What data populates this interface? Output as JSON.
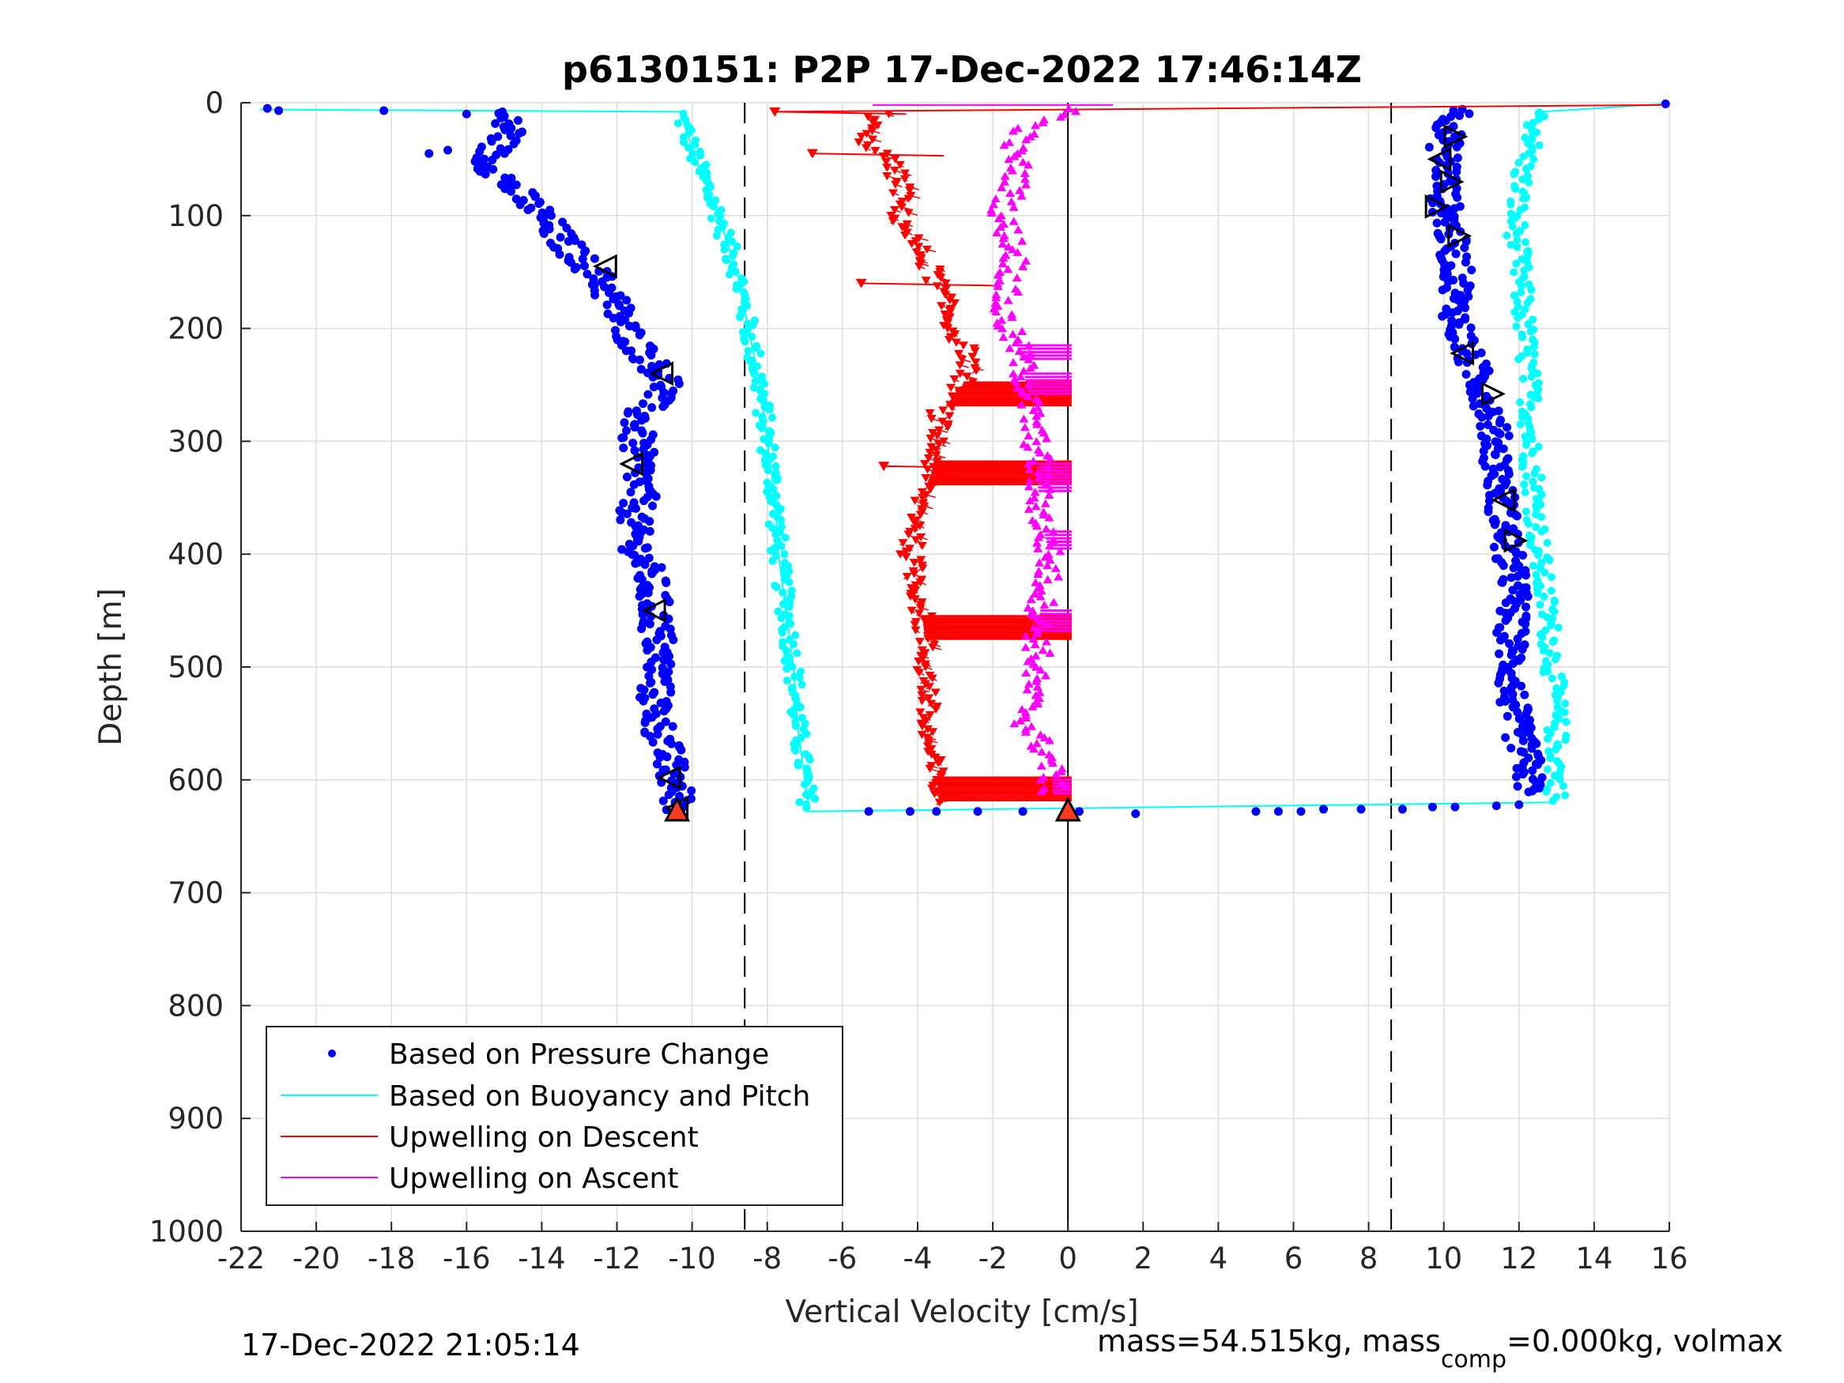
{
  "chart_data": {
    "type": "scatter",
    "title": "p6130151: P2P 17-Dec-2022 17:46:14Z",
    "xlabel": "Vertical Velocity [cm/s]",
    "ylabel": "Depth [m]",
    "xlim": [
      -22,
      16
    ],
    "ylim": [
      0,
      1000
    ],
    "y_reversed": true,
    "grid": true,
    "x_ticks": [
      "-22",
      "-20",
      "-18",
      "-16",
      "-14",
      "-12",
      "-10",
      "-8",
      "-6",
      "-4",
      "-2",
      "0",
      "2",
      "4",
      "6",
      "8",
      "10",
      "12",
      "14",
      "16"
    ],
    "y_ticks": [
      "0",
      "100",
      "200",
      "300",
      "400",
      "500",
      "600",
      "700",
      "800",
      "900",
      "1000"
    ],
    "reference_lines": {
      "dashed_x": [
        -8.6,
        8.6
      ],
      "solid_x": [
        0
      ]
    },
    "legend": {
      "placement": "bottom-left",
      "entries": [
        {
          "label": "Based on Pressure Change",
          "color": "#0000ff",
          "style": "dot"
        },
        {
          "label": "Based on Buoyancy and Pitch",
          "color": "#00ffff",
          "style": "line"
        },
        {
          "label": "Upwelling on Descent",
          "color": "#ff0000",
          "style": "line"
        },
        {
          "label": "Upwelling on Ascent",
          "color": "#ff00ff",
          "style": "line"
        }
      ]
    },
    "series": [
      {
        "name": "Based on Pressure Change",
        "color": "#0000ff",
        "marker": "dot",
        "descent": {
          "depth": [
            8,
            25,
            50,
            75,
            100,
            125,
            150,
            175,
            200,
            225,
            250,
            275,
            300,
            325,
            350,
            375,
            400,
            425,
            450,
            475,
            500,
            525,
            550,
            575,
            600,
            625
          ],
          "velocity": [
            -15.2,
            -14.8,
            -15.5,
            -14.8,
            -14.0,
            -13.4,
            -12.6,
            -12.1,
            -11.8,
            -11.2,
            -10.6,
            -11.4,
            -11.5,
            -11.4,
            -11.4,
            -11.6,
            -11.4,
            -11.1,
            -11.0,
            -10.9,
            -10.9,
            -11.0,
            -10.9,
            -10.7,
            -10.5,
            -10.3
          ]
        },
        "ascent": {
          "depth": [
            610,
            580,
            550,
            520,
            490,
            460,
            430,
            400,
            370,
            340,
            310,
            280,
            250,
            220,
            200,
            180,
            160,
            140,
            120,
            100,
            80,
            60,
            40,
            20,
            5
          ],
          "velocity": [
            12.3,
            12.2,
            11.9,
            11.8,
            11.8,
            11.8,
            11.9,
            11.7,
            11.6,
            11.5,
            11.4,
            11.3,
            11.0,
            10.6,
            10.4,
            10.3,
            10.4,
            10.3,
            10.2,
            10.1,
            10.0,
            10.1,
            10.0,
            10.2,
            10.5
          ]
        },
        "surface_outliers": [
          [
            -21.3,
            5
          ],
          [
            -21.0,
            7
          ],
          [
            -18.2,
            7
          ],
          [
            -16.0,
            10
          ],
          [
            -17.0,
            45
          ],
          [
            -16.5,
            42
          ]
        ],
        "transition_points": [
          [
            -5.3,
            628
          ],
          [
            -4.2,
            628
          ],
          [
            -3.5,
            628
          ],
          [
            -2.4,
            628
          ],
          [
            -1.2,
            628
          ],
          [
            0.3,
            628
          ],
          [
            1.8,
            630
          ],
          [
            5.0,
            628
          ],
          [
            5.6,
            628
          ],
          [
            6.2,
            628
          ],
          [
            6.8,
            626
          ],
          [
            7.8,
            626
          ],
          [
            8.9,
            626
          ],
          [
            9.7,
            624
          ],
          [
            10.3,
            624
          ],
          [
            11.4,
            623
          ],
          [
            12.0,
            622
          ]
        ]
      },
      {
        "name": "Based on Buoyancy and Pitch",
        "color": "#00ffff",
        "marker": "dot-line",
        "descent": {
          "depth": [
            10,
            50,
            100,
            150,
            200,
            250,
            300,
            350,
            400,
            450,
            500,
            550,
            600,
            625
          ],
          "velocity": [
            -10.3,
            -9.9,
            -9.3,
            -8.8,
            -8.5,
            -8.2,
            -8.0,
            -7.8,
            -7.7,
            -7.5,
            -7.3,
            -7.2,
            -7.0,
            -6.9
          ]
        },
        "ascent": {
          "depth": [
            620,
            580,
            540,
            500,
            460,
            420,
            380,
            340,
            300,
            260,
            220,
            180,
            140,
            100,
            60,
            30,
            10
          ],
          "velocity": [
            13.0,
            13.0,
            13.0,
            12.9,
            12.8,
            12.6,
            12.5,
            12.4,
            12.3,
            12.3,
            12.2,
            12.1,
            12.0,
            11.9,
            12.1,
            12.4,
            12.5
          ]
        }
      },
      {
        "name": "Upwelling on Descent",
        "color": "#ff0000",
        "marker": "triangle-down",
        "depth": [
          10,
          30,
          50,
          75,
          100,
          125,
          150,
          175,
          200,
          225,
          250,
          275,
          300,
          325,
          350,
          375,
          400,
          425,
          450,
          475,
          500,
          525,
          550,
          575,
          600,
          620
        ],
        "velocity": [
          -5.0,
          -5.5,
          -4.8,
          -4.4,
          -4.5,
          -4.1,
          -3.6,
          -3.3,
          -3.1,
          -2.6,
          -2.8,
          -3.4,
          -3.5,
          -3.6,
          -3.9,
          -4.0,
          -4.2,
          -4.0,
          -3.9,
          -3.8,
          -3.8,
          -3.7,
          -3.8,
          -3.7,
          -3.5,
          -3.4
        ]
      },
      {
        "name": "Upwelling on Ascent",
        "color": "#ff00ff",
        "marker": "triangle-up",
        "depth": [
          610,
          580,
          550,
          520,
          490,
          460,
          430,
          400,
          370,
          340,
          310,
          280,
          250,
          220,
          200,
          180,
          160,
          140,
          120,
          100,
          80,
          60,
          40,
          20,
          5
        ],
        "velocity": [
          -0.4,
          -0.5,
          -1.1,
          -1.0,
          -0.8,
          -0.8,
          -0.6,
          -0.5,
          -0.7,
          -0.8,
          -0.8,
          -1.0,
          -1.1,
          -1.3,
          -1.6,
          -1.8,
          -1.6,
          -1.4,
          -1.5,
          -1.8,
          -1.5,
          -1.3,
          -1.5,
          -1.0,
          0.3
        ]
      }
    ],
    "black_triangle_markers": [
      {
        "depth": 145,
        "velocity": -12.3,
        "dir": "left"
      },
      {
        "depth": 240,
        "velocity": -10.8,
        "dir": "left"
      },
      {
        "depth": 320,
        "velocity": -11.6,
        "dir": "left"
      },
      {
        "depth": 450,
        "velocity": -11.0,
        "dir": "left"
      },
      {
        "depth": 598,
        "velocity": -10.6,
        "dir": "left"
      },
      {
        "depth": 625,
        "velocity": -10.4,
        "dir": "left"
      },
      {
        "depth": 30,
        "velocity": 10.3,
        "dir": "right"
      },
      {
        "depth": 50,
        "velocity": 9.9,
        "dir": "left"
      },
      {
        "depth": 70,
        "velocity": 10.2,
        "dir": "right"
      },
      {
        "depth": 92,
        "velocity": 9.8,
        "dir": "right"
      },
      {
        "depth": 118,
        "velocity": 10.4,
        "dir": "right"
      },
      {
        "depth": 222,
        "velocity": 10.5,
        "dir": "left"
      },
      {
        "depth": 258,
        "velocity": 11.3,
        "dir": "right"
      },
      {
        "depth": 352,
        "velocity": 11.6,
        "dir": "left"
      },
      {
        "depth": 388,
        "velocity": 11.9,
        "dir": "right"
      }
    ],
    "bottom_markers": [
      {
        "depth": 628,
        "velocity": -10.4,
        "color": "#ff3b1f"
      },
      {
        "depth": 628,
        "velocity": 0.0,
        "color": "#ff3b1f"
      }
    ]
  },
  "footer": {
    "timestamp": "17-Dec-2022 21:05:14",
    "mass_text_prefix": "mass=54.515kg, mass",
    "mass_text_sub": "comp",
    "mass_text_suffix": "=0.000kg, volmax"
  }
}
